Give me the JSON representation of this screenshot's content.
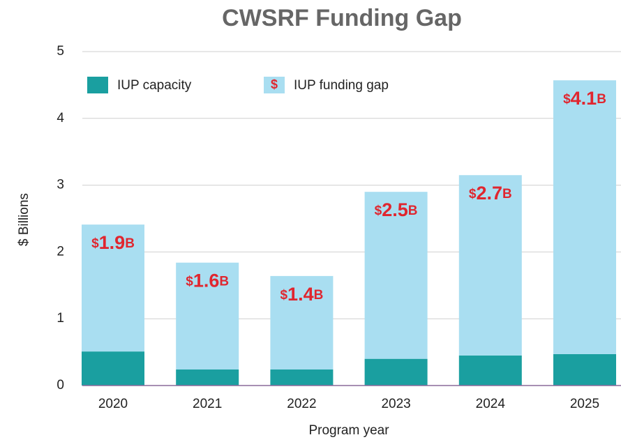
{
  "chart_data": {
    "type": "stacked_bar",
    "title": "CWSRF Funding Gap",
    "x_label": "Program year",
    "y_label": "$ Billions",
    "categories": [
      "2020",
      "2021",
      "2022",
      "2023",
      "2024",
      "2025"
    ],
    "series": [
      {
        "name": "IUP capacity",
        "color": "#1a9fa0",
        "values": [
          0.51,
          0.24,
          0.24,
          0.4,
          0.45,
          0.47
        ]
      },
      {
        "name": "IUP funding gap",
        "color": "#a9def1",
        "values": [
          1.9,
          1.6,
          1.4,
          2.5,
          2.7,
          4.1
        ],
        "value_labels": [
          "$1.9B",
          "$1.6B",
          "$1.4B",
          "$2.5B",
          "$2.7B",
          "$4.1B"
        ]
      }
    ],
    "ylim": [
      0,
      5
    ],
    "yticks": [
      0,
      1,
      2,
      3,
      4,
      5
    ],
    "grid": true
  }
}
